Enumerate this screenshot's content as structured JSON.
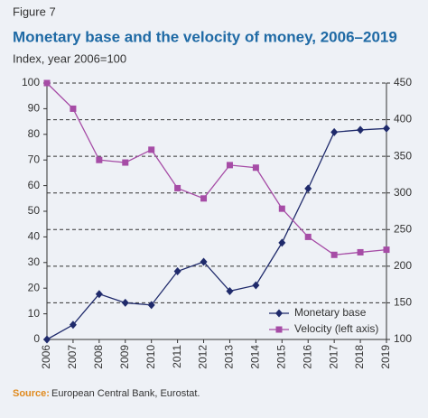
{
  "chart_data": {
    "type": "line",
    "figure_label": "Figure 7",
    "title": "Monetary base and the velocity of money, 2006–2019",
    "subtitle": "Index, year 2006=100",
    "source_label": "Source:",
    "source_text": "European Central Bank, Eurostat.",
    "categories": [
      "2006",
      "2007",
      "2008",
      "2009",
      "2010",
      "2011",
      "2012",
      "2013",
      "2014",
      "2015",
      "2016",
      "2017",
      "2018",
      "2019"
    ],
    "series": [
      {
        "name": "Monetary base",
        "color": "#1f2a6b",
        "marker": "diamond",
        "axis": "y2",
        "values": [
          100,
          120,
          162,
          150,
          147,
          193,
          206,
          166,
          174,
          232,
          306,
          383,
          386,
          388
        ]
      },
      {
        "name": "Velocity (left axis)",
        "color": "#a64ca6",
        "marker": "square",
        "axis": "y",
        "values": [
          100,
          90,
          70,
          69,
          74,
          59,
          55,
          68,
          67,
          51,
          40,
          33,
          34,
          35
        ]
      }
    ],
    "ylim": [
      0,
      100
    ],
    "yticks": [
      0,
      10,
      20,
      30,
      40,
      50,
      60,
      70,
      80,
      90,
      100
    ],
    "y2lim": [
      100,
      450
    ],
    "y2ticks": [
      100,
      150,
      200,
      250,
      300,
      350,
      400,
      450
    ],
    "grid": "y2",
    "legend": "lower right"
  }
}
